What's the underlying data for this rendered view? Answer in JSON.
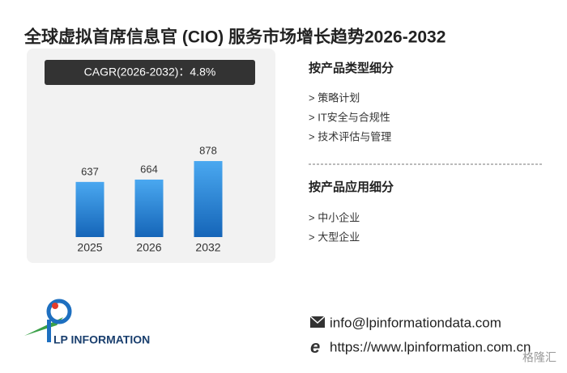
{
  "title": "全球虚拟首席信息官 (CIO) 服务市场增长趋势2026-2032",
  "chart_data": {
    "type": "bar",
    "cagr": "CAGR(2026-2032)：4.8%",
    "categories": [
      "2025",
      "2026",
      "2032"
    ],
    "values": [
      637,
      664,
      878
    ],
    "color": "#4aa8f0"
  },
  "segments": [
    {
      "heading": "按产品类型细分",
      "items": [
        "> 策略计划",
        "> IT安全与合规性",
        "> 技术评估与管理"
      ]
    },
    {
      "heading": "按产品应用细分",
      "items": [
        "> 中小企业",
        "> 大型企业"
      ]
    }
  ],
  "logo": "LP INFORMATION",
  "email": "info@lpinformationdata.com",
  "website": "https://www.lpinformation.com.cn",
  "watermark": "格隆汇"
}
